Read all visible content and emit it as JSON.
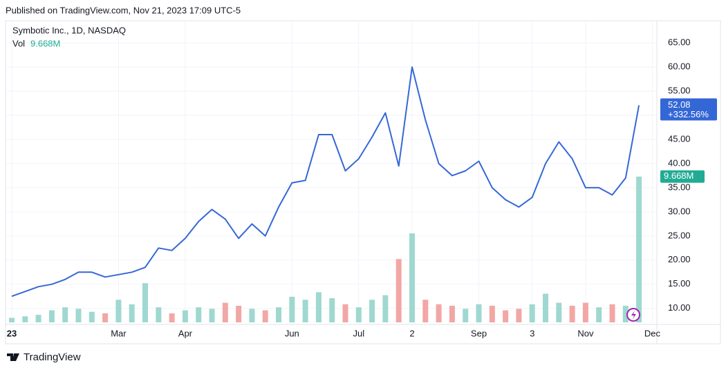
{
  "published": "Published on TradingView.com, Nov 21, 2023 17:09 UTC-5",
  "brand": "TradingView",
  "chart_data": {
    "type": "line",
    "title": "Symbotic Inc., 1D, NASDAQ",
    "change_label": "+332.56%",
    "categories": [
      "23",
      null,
      null,
      null,
      null,
      null,
      null,
      null,
      "Mar",
      null,
      null,
      null,
      null,
      "Apr",
      null,
      null,
      null,
      null,
      null,
      null,
      null,
      "Jun",
      null,
      null,
      null,
      null,
      "Jul",
      null,
      null,
      null,
      "2",
      null,
      null,
      null,
      null,
      "Sep",
      null,
      null,
      null,
      "3",
      null,
      null,
      null,
      "Nov",
      null,
      null,
      null,
      null,
      "Dec"
    ],
    "series": [
      {
        "name": "Symbotic Inc.",
        "color": "#3467d6",
        "values": [
          12.5,
          13.5,
          14.5,
          15.0,
          16.0,
          17.5,
          17.5,
          16.5,
          17.0,
          17.5,
          18.5,
          22.5,
          22.0,
          24.5,
          28.0,
          30.5,
          28.5,
          24.5,
          27.5,
          25.0,
          31.0,
          36.0,
          36.5,
          46.0,
          46.0,
          38.5,
          41.0,
          45.5,
          50.5,
          39.5,
          60.0,
          49.0,
          40.0,
          37.5,
          38.5,
          40.5,
          35.0,
          32.5,
          31.0,
          33.0,
          40.0,
          44.5,
          41.0,
          35.0,
          35.0,
          33.5,
          37.0,
          52.08,
          null
        ]
      },
      {
        "name": "Vol",
        "axis": "y2",
        "up_color": "#9fd8d0",
        "down_color": "#f2a7a5",
        "tag_color": "#22ab94",
        "values": [
          0.3,
          0.4,
          0.5,
          0.8,
          1.0,
          0.9,
          0.7,
          0.6,
          1.5,
          1.2,
          2.6,
          1.0,
          0.6,
          0.8,
          1.0,
          0.9,
          1.3,
          1.1,
          0.9,
          0.8,
          1.0,
          1.7,
          1.5,
          2.0,
          1.6,
          1.2,
          1.0,
          1.5,
          1.8,
          4.2,
          5.9,
          1.5,
          1.2,
          1.1,
          0.9,
          1.2,
          1.1,
          0.8,
          0.9,
          1.2,
          1.9,
          1.3,
          1.1,
          1.3,
          1.0,
          1.2,
          1.1,
          9.668,
          null
        ],
        "value_labels": [
          null,
          null,
          null,
          null,
          null,
          null,
          null,
          null,
          null,
          null,
          null,
          null,
          null,
          null,
          null,
          null,
          null,
          null,
          null,
          null,
          null,
          null,
          null,
          null,
          null,
          null,
          null,
          null,
          null,
          null,
          null,
          null,
          null,
          null,
          null,
          null,
          null,
          null,
          null,
          null,
          null,
          null,
          null,
          null,
          null,
          null,
          null,
          "9.668M",
          null
        ]
      }
    ],
    "ylim": [
      7.1,
      69.6
    ],
    "yticks": [
      {
        "value": 10,
        "label": "10.00"
      },
      {
        "value": 15,
        "label": "15.00"
      },
      {
        "value": 20,
        "label": "20.00"
      },
      {
        "value": 25,
        "label": "25.00"
      },
      {
        "value": 30,
        "label": "30.00"
      },
      {
        "value": 35,
        "label": "35.00"
      },
      {
        "value": 40,
        "label": "40.00"
      },
      {
        "value": 45,
        "label": "45.00"
      },
      {
        "value": 50,
        "label": "50.00"
      },
      {
        "value": 55,
        "label": "55.00"
      },
      {
        "value": 60,
        "label": "60.00"
      },
      {
        "value": 65,
        "label": "65.00"
      }
    ],
    "y2lim": [
      0,
      20
    ],
    "grid": true
  }
}
